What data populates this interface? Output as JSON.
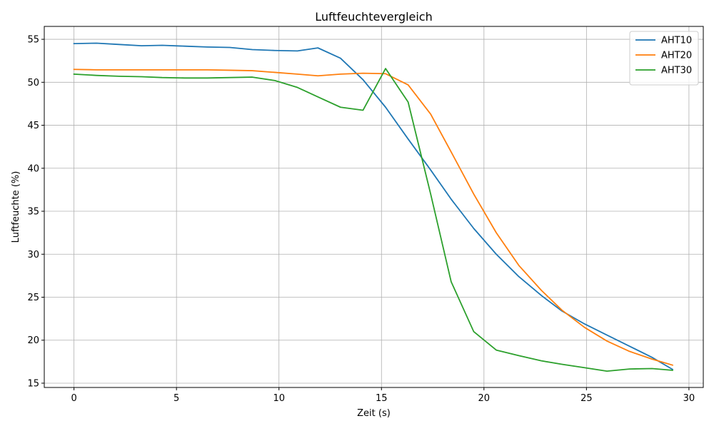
{
  "colors": {
    "background": "#ffffff",
    "grid": "#b0b0b0",
    "axis": "#000000",
    "legend_border": "#cccccc"
  },
  "chart_data": {
    "type": "line",
    "title": "Luftfeuchtevergleich",
    "xlabel": "Zeit (s)",
    "ylabel": "Luftfeuchte (%)",
    "xlim": [
      -1.45,
      30.7
    ],
    "ylim": [
      14.5,
      56.5
    ],
    "xticks": [
      0,
      5,
      10,
      15,
      20,
      25,
      30
    ],
    "xtick_labels": [
      "0",
      "5",
      "10",
      "15",
      "20",
      "25",
      "30"
    ],
    "yticks": [
      15,
      20,
      25,
      30,
      35,
      40,
      45,
      50,
      55
    ],
    "ytick_labels": [
      "15",
      "20",
      "25",
      "30",
      "35",
      "40",
      "45",
      "50",
      "55"
    ],
    "grid": true,
    "legend_position": "upper right",
    "series": [
      {
        "name": "AHT10",
        "color": "#1f77b4",
        "x": [
          0,
          1.1,
          2.2,
          3.3,
          4.3,
          5.4,
          6.5,
          7.6,
          8.7,
          9.8,
          10.9,
          11.9,
          13.0,
          14.1,
          15.2,
          16.3,
          17.4,
          18.4,
          19.5,
          20.6,
          21.7,
          22.8,
          23.8,
          24.9,
          26.0,
          27.1,
          28.2,
          29.2
        ],
        "y": [
          54.5,
          54.55,
          54.4,
          54.25,
          54.3,
          54.2,
          54.1,
          54.05,
          53.8,
          53.7,
          53.65,
          54.0,
          52.8,
          50.3,
          47.1,
          43.4,
          39.8,
          36.4,
          33.0,
          30.0,
          27.4,
          25.2,
          23.4,
          21.9,
          20.6,
          19.3,
          18.0,
          16.6
        ]
      },
      {
        "name": "AHT20",
        "color": "#ff7f0e",
        "x": [
          0,
          1.1,
          2.2,
          3.3,
          4.3,
          5.4,
          6.5,
          7.6,
          8.7,
          9.8,
          10.9,
          11.9,
          13.0,
          14.1,
          15.2,
          16.3,
          17.4,
          18.4,
          19.5,
          20.6,
          21.7,
          22.8,
          23.8,
          24.9,
          26.0,
          27.1,
          28.2,
          29.2
        ],
        "y": [
          51.5,
          51.45,
          51.45,
          51.45,
          51.45,
          51.45,
          51.45,
          51.4,
          51.35,
          51.15,
          50.95,
          50.75,
          50.95,
          51.05,
          51.0,
          49.7,
          46.3,
          41.9,
          37.0,
          32.5,
          28.7,
          25.8,
          23.5,
          21.5,
          19.9,
          18.7,
          17.8,
          17.1
        ]
      },
      {
        "name": "AHT30",
        "color": "#2ca02c",
        "x": [
          0,
          1.1,
          2.2,
          3.3,
          4.3,
          5.4,
          6.5,
          7.6,
          8.7,
          9.8,
          10.9,
          11.9,
          13.0,
          14.1,
          15.2,
          16.3,
          17.4,
          18.4,
          19.5,
          20.6,
          21.7,
          22.8,
          23.8,
          24.9,
          26.0,
          27.1,
          28.2,
          29.2
        ],
        "y": [
          50.95,
          50.8,
          50.7,
          50.65,
          50.55,
          50.5,
          50.5,
          50.55,
          50.6,
          50.2,
          49.4,
          48.3,
          47.1,
          46.75,
          51.6,
          47.7,
          37.0,
          26.8,
          21.0,
          18.85,
          18.2,
          17.6,
          17.2,
          16.8,
          16.4,
          16.65,
          16.7,
          16.5
        ]
      }
    ]
  }
}
